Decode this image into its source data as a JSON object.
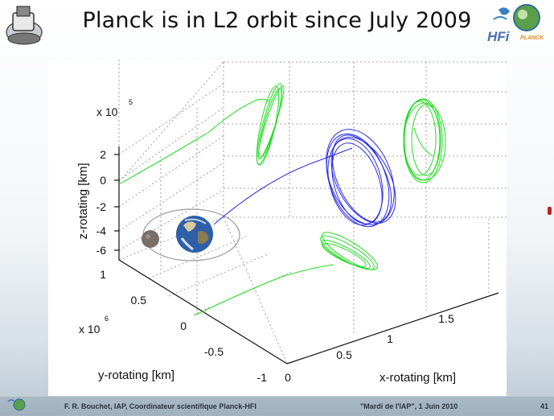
{
  "slide": {
    "title": "Planck is in L2 orbit since July 2009",
    "logo_text": "HFi",
    "logo_subtext": "PLANCK"
  },
  "footer": {
    "left": "F. R. Bouchet, IAP, Coordinateur scientifique Planck-HFI",
    "center": "\"Mardi de l'IAP\", 1 Juin 2010",
    "page": "41"
  },
  "chart_data": {
    "type": "line",
    "projection": "3d",
    "xlabel": "x-rotating [km]",
    "ylabel": "y-rotating [km]",
    "zlabel": "z-rotating [km]",
    "y_scale_label": "x 10",
    "y_scale_exp": "6",
    "z_scale_label": "x 10",
    "z_scale_exp": "5",
    "x_ticks": [
      "0",
      "0.5",
      "1",
      "1.5"
    ],
    "y_ticks": [
      "-1",
      "-0.5",
      "0",
      "0.5",
      "1"
    ],
    "z_ticks": [
      "2",
      "0",
      "-2",
      "-4",
      "-6"
    ],
    "xlim": [
      0,
      1.9
    ],
    "ylim": [
      -1,
      1
    ],
    "zlim": [
      -7,
      2.5
    ],
    "grid": true,
    "colors": {
      "orbit": "#2a2ae0",
      "projection": "#22dd22",
      "ellipse": "#999999"
    },
    "series": [
      {
        "values": "Planck trajectory from Earth to Lissajous orbit around L2"
      },
      {
        "values": "projections of trajectory onto the three coordinate planes"
      }
    ],
    "annotations": [
      "earth-image",
      "moon-image",
      "moon-orbit-ellipse"
    ]
  }
}
